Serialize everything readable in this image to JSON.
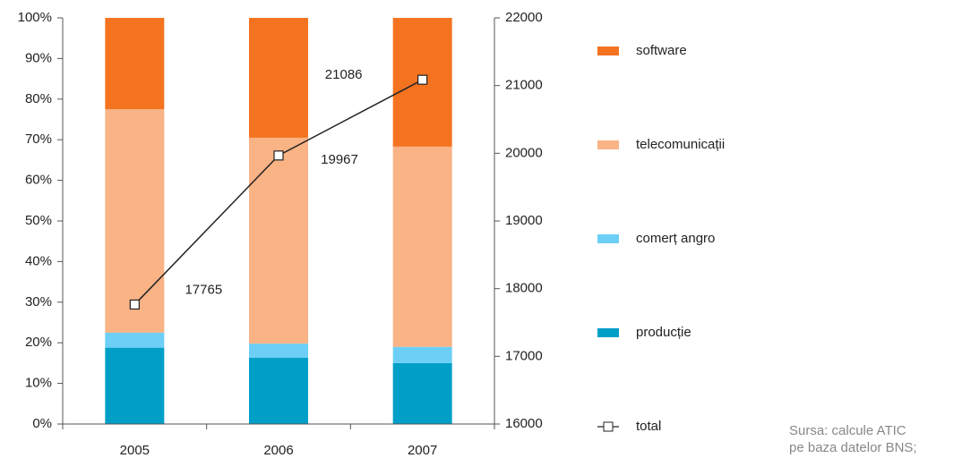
{
  "chart_data": {
    "type": "stacked_bar_line",
    "categories": [
      "2005",
      "2006",
      "2007"
    ],
    "series": [
      {
        "name": "producție",
        "color": "#009fc8",
        "values": [
          18.8,
          16.3,
          15
        ]
      },
      {
        "name": "comerț angro",
        "color": "#6dcff6",
        "values": [
          3.7,
          3.5,
          4
        ]
      },
      {
        "name": "telecomunicații",
        "color": "#f9b385",
        "values": [
          55,
          50.7,
          49.3
        ]
      },
      {
        "name": "software",
        "color": "#f47320",
        "values": [
          22.5,
          29.5,
          31.7
        ]
      },
      {
        "name": "total",
        "color": "#222222",
        "axis": "y2",
        "values": [
          17765,
          19967,
          21086
        ]
      }
    ],
    "ylim": [
      0,
      100
    ],
    "yticks": [
      {
        "value": 0,
        "label": "0%"
      },
      {
        "value": 10,
        "label": "10%"
      },
      {
        "value": 20,
        "label": "20%"
      },
      {
        "value": 30,
        "label": "30%"
      },
      {
        "value": 40,
        "label": "40%"
      },
      {
        "value": 50,
        "label": "50%"
      },
      {
        "value": 60,
        "label": "60%"
      },
      {
        "value": 70,
        "label": "70%"
      },
      {
        "value": 80,
        "label": "80%"
      },
      {
        "value": 90,
        "label": "90%"
      },
      {
        "value": 100,
        "label": "100%"
      }
    ],
    "y2lim": [
      16000,
      22000
    ],
    "y2ticks": [
      16000,
      17000,
      18000,
      19000,
      20000,
      21000,
      22000
    ],
    "legend": "right",
    "notes": [
      "Sursa: calcule ATIC",
      "pe baza datelor BNS;"
    ]
  }
}
